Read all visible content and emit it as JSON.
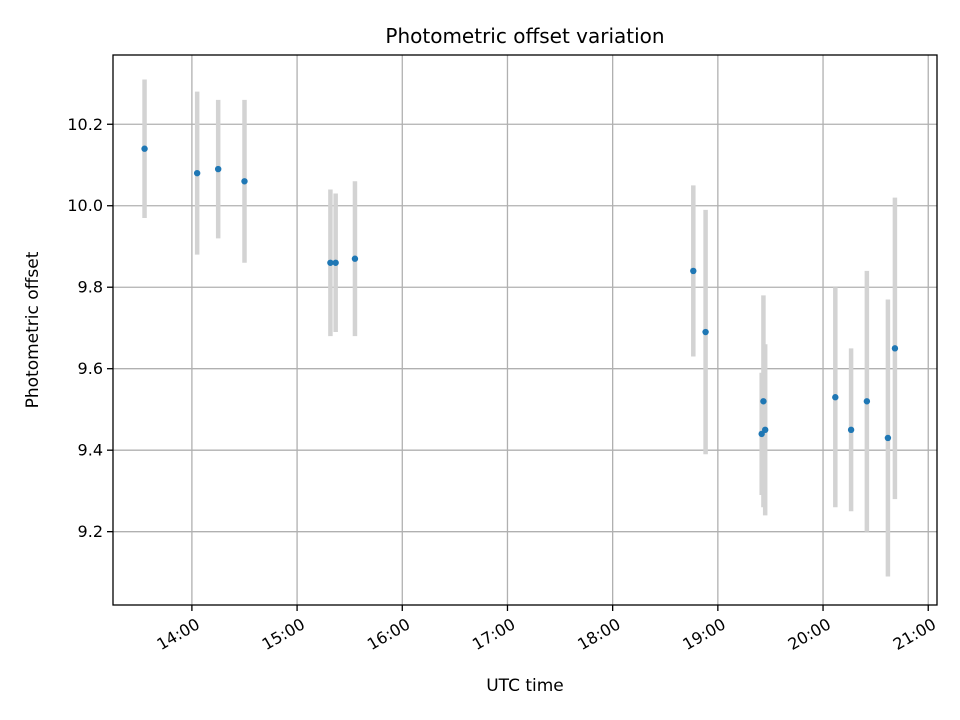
{
  "chart_data": {
    "type": "scatter",
    "title": "Photometric offset variation",
    "xlabel": "UTC time",
    "ylabel": "Photometric offset",
    "x_ticks": [
      "14:00",
      "15:00",
      "16:00",
      "17:00",
      "18:00",
      "19:00",
      "20:00",
      "21:00"
    ],
    "y_ticks": [
      "9.2",
      "9.4",
      "9.6",
      "9.8",
      "10.0",
      "10.2"
    ],
    "xlim": [
      "13:15",
      "21:05"
    ],
    "ylim": [
      9.02,
      10.37
    ],
    "grid": true,
    "colors": {
      "point": "#1f77b4",
      "errorbar": "#d3d3d3",
      "grid": "#b0b0b0"
    },
    "points": [
      {
        "x": "13:33",
        "y": 10.14,
        "err": 0.17
      },
      {
        "x": "14:03",
        "y": 10.08,
        "err": 0.2
      },
      {
        "x": "14:15",
        "y": 10.09,
        "err": 0.17
      },
      {
        "x": "14:30",
        "y": 10.06,
        "err": 0.2
      },
      {
        "x": "15:19",
        "y": 9.86,
        "err": 0.18
      },
      {
        "x": "15:22",
        "y": 9.86,
        "err": 0.17
      },
      {
        "x": "15:33",
        "y": 9.87,
        "err": 0.19
      },
      {
        "x": "18:46",
        "y": 9.84,
        "err": 0.21
      },
      {
        "x": "18:53",
        "y": 9.69,
        "err": 0.3
      },
      {
        "x": "19:25",
        "y": 9.44,
        "err": 0.15
      },
      {
        "x": "19:26",
        "y": 9.52,
        "err": 0.26
      },
      {
        "x": "19:27",
        "y": 9.45,
        "err": 0.21
      },
      {
        "x": "20:07",
        "y": 9.53,
        "err": 0.27
      },
      {
        "x": "20:16",
        "y": 9.45,
        "err": 0.2
      },
      {
        "x": "20:25",
        "y": 9.52,
        "err": 0.32
      },
      {
        "x": "20:37",
        "y": 9.43,
        "err": 0.34
      },
      {
        "x": "20:41",
        "y": 9.65,
        "err": 0.37
      }
    ]
  }
}
